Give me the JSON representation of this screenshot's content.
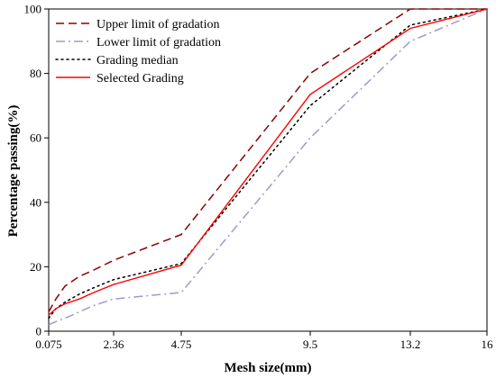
{
  "chart_data": {
    "type": "line",
    "xlabel": "Mesh size(mm)",
    "ylabel": "Percentage passing(%)",
    "x_tick_labels": [
      "0.075",
      "2.36",
      "4.75",
      "9.5",
      "13.2",
      "16"
    ],
    "x_scale": "categorical-uneven",
    "y_ticks": [
      0,
      20,
      40,
      60,
      80,
      100
    ],
    "ylim": [
      0,
      100
    ],
    "grid": false,
    "legend_position": "top-left",
    "series": [
      {
        "name": "Upper limit of gradation",
        "color": "#8b0000",
        "dash": "dashed",
        "points": [
          {
            "x": "0.075",
            "y": 6
          },
          {
            "x": "0.15",
            "y": 10
          },
          {
            "x": "0.3",
            "y": 14
          },
          {
            "x": "0.6",
            "y": 17
          },
          {
            "x": "1.18",
            "y": 19
          },
          {
            "x": "2.36",
            "y": 22
          },
          {
            "x": "4.75",
            "y": 30
          },
          {
            "x": "9.5",
            "y": 80
          },
          {
            "x": "13.2",
            "y": 100
          },
          {
            "x": "16",
            "y": 100
          }
        ]
      },
      {
        "name": "Lower limit of gradation",
        "color": "#9e9ac8",
        "dash": "dash-dot",
        "points": [
          {
            "x": "0.075",
            "y": 2
          },
          {
            "x": "0.15",
            "y": 3
          },
          {
            "x": "0.3",
            "y": 4
          },
          {
            "x": "0.6",
            "y": 6
          },
          {
            "x": "1.18",
            "y": 8
          },
          {
            "x": "2.36",
            "y": 10
          },
          {
            "x": "4.75",
            "y": 12
          },
          {
            "x": "9.5",
            "y": 60
          },
          {
            "x": "13.2",
            "y": 90
          },
          {
            "x": "16",
            "y": 100
          }
        ]
      },
      {
        "name": "Grading median",
        "color": "#000000",
        "dash": "dotted",
        "points": [
          {
            "x": "0.075",
            "y": 4
          },
          {
            "x": "0.15",
            "y": 7
          },
          {
            "x": "0.3",
            "y": 9
          },
          {
            "x": "0.6",
            "y": 11.5
          },
          {
            "x": "1.18",
            "y": 13.5
          },
          {
            "x": "2.36",
            "y": 16
          },
          {
            "x": "4.75",
            "y": 21
          },
          {
            "x": "9.5",
            "y": 70
          },
          {
            "x": "13.2",
            "y": 95
          },
          {
            "x": "16",
            "y": 100
          }
        ]
      },
      {
        "name": "Selected Grading",
        "color": "#ff0000",
        "dash": "solid",
        "points": [
          {
            "x": "0.075",
            "y": 5
          },
          {
            "x": "0.15",
            "y": 7
          },
          {
            "x": "0.3",
            "y": 8.5
          },
          {
            "x": "0.6",
            "y": 10
          },
          {
            "x": "1.18",
            "y": 12
          },
          {
            "x": "2.36",
            "y": 14.5
          },
          {
            "x": "4.75",
            "y": 20.5
          },
          {
            "x": "9.5",
            "y": 73.5
          },
          {
            "x": "13.2",
            "y": 94
          },
          {
            "x": "16",
            "y": 100
          }
        ]
      }
    ]
  }
}
